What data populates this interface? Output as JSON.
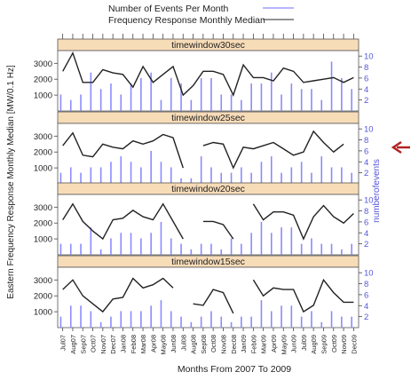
{
  "chart_data": {
    "type": "bar",
    "layout": "4 stacked panels with shared x axis; bars on right axis, median line on left axis",
    "legend": {
      "position": "top",
      "entries": [
        {
          "label": "Number of Events Per Month",
          "color": "#8b8bff",
          "style": "line"
        },
        {
          "label": "Frequency Response Monthly Median",
          "color": "#333333",
          "style": "line"
        }
      ]
    },
    "xlabel": "Months From 2007 To 2009",
    "ylabel_left": "Eastern Frequency Response Monthly Median [MW/0.1 Hz]",
    "ylabel_right": "numberofevents",
    "ylim_left": [
      0,
      3800
    ],
    "ylim_right": [
      0,
      11
    ],
    "yticks_left": [
      "1000",
      "2000",
      "3000"
    ],
    "yticks_right": [
      "2",
      "4",
      "6",
      "8",
      "10"
    ],
    "categories": [
      "Jul07",
      "Aug07",
      "Sep07",
      "Oct07",
      "Nov07",
      "Dec07",
      "Jan08",
      "Feb08",
      "Mar08",
      "Apr08",
      "May08",
      "Jun08",
      "Jul08",
      "Aug08",
      "Sep08",
      "Oct08",
      "Nov08",
      "Dec08",
      "Jan09",
      "Feb09",
      "Mar09",
      "Apr09",
      "May09",
      "Jun09",
      "Jul09",
      "Aug09",
      "Sep09",
      "Oct09",
      "Nov09",
      "Dec09"
    ],
    "panels": [
      {
        "title": "timewindow30sec",
        "median": [
          2500,
          3650,
          1800,
          1800,
          2600,
          2400,
          2300,
          1500,
          2800,
          1800,
          2300,
          2800,
          1000,
          1600,
          2500,
          2500,
          2300,
          1000,
          2900,
          2100,
          2100,
          1900,
          2700,
          2500,
          1800,
          1900,
          2000,
          2100,
          1800,
          2100
        ],
        "events": [
          3,
          2,
          3,
          7,
          4,
          5,
          3,
          5,
          6,
          7,
          2,
          6,
          5,
          2,
          6,
          6,
          3,
          3,
          2,
          5,
          5,
          7,
          3,
          5,
          4,
          4,
          2,
          9,
          6,
          4
        ]
      },
      {
        "title": "timewindow25sec",
        "median": [
          2400,
          3200,
          1800,
          1700,
          2500,
          2300,
          2200,
          2700,
          2500,
          2700,
          3100,
          2900,
          1000,
          null,
          2400,
          2600,
          2500,
          1000,
          2300,
          2200,
          2400,
          2600,
          2200,
          1800,
          2000,
          3300,
          2600,
          2000,
          2500,
          null
        ],
        "events": [
          2,
          3,
          2,
          3,
          3,
          4,
          5,
          4,
          3,
          6,
          4,
          3,
          1,
          1,
          5,
          3,
          2,
          2,
          3,
          2,
          4,
          5,
          2,
          3,
          4,
          2,
          5,
          3,
          3,
          2
        ]
      },
      {
        "title": "timewindow20sec",
        "median": [
          2200,
          3200,
          2100,
          1500,
          1000,
          2200,
          2300,
          2800,
          2400,
          2200,
          3200,
          2100,
          1000,
          null,
          2100,
          2100,
          1900,
          1000,
          null,
          3200,
          2200,
          2700,
          2700,
          2500,
          1000,
          2400,
          3100,
          2400,
          2000,
          2600
        ],
        "events": [
          2,
          2,
          2,
          5,
          1,
          3,
          4,
          4,
          3,
          4,
          6,
          3,
          2,
          1,
          2,
          2,
          1,
          3,
          2,
          4,
          6,
          4,
          5,
          5,
          2,
          3,
          2,
          2,
          1,
          2
        ]
      },
      {
        "title": "timewindow15sec",
        "median": [
          2400,
          3000,
          2000,
          1500,
          1000,
          1800,
          1900,
          3100,
          2500,
          2700,
          3100,
          2500,
          null,
          1500,
          1400,
          2400,
          2200,
          900,
          null,
          3000,
          2000,
          2500,
          2400,
          2400,
          1000,
          1400,
          3000,
          2200,
          1600,
          1600
        ],
        "events": [
          2,
          4,
          4,
          3,
          1,
          2,
          3,
          3,
          3,
          4,
          5,
          3,
          2,
          1,
          2,
          3,
          2,
          1,
          2,
          2,
          5,
          3,
          4,
          4,
          2,
          3,
          1,
          3,
          2,
          2
        ]
      }
    ]
  }
}
